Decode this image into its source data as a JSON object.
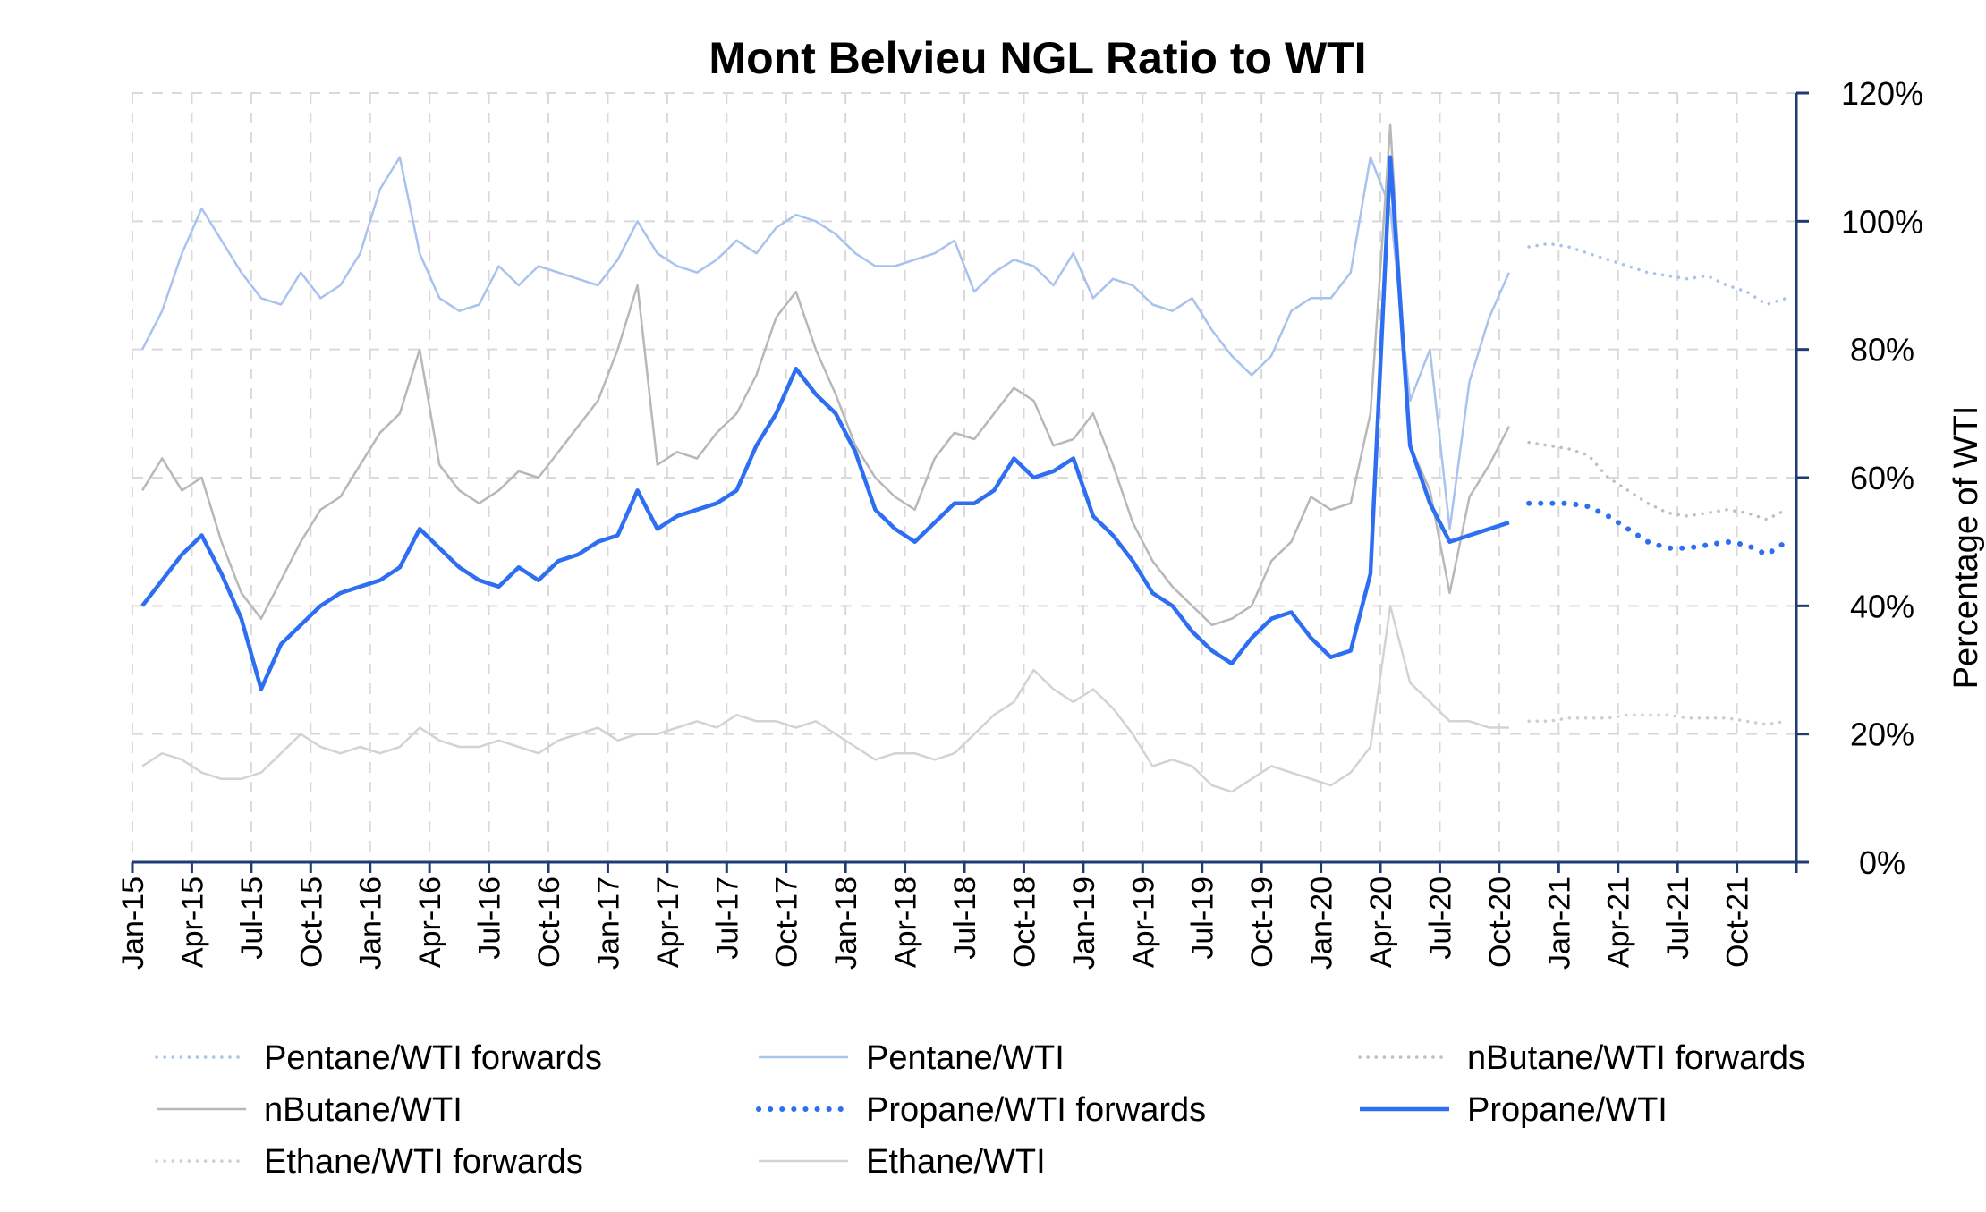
{
  "chart_data": {
    "type": "line",
    "title": "Mont Belvieu NGL Ratio to WTI",
    "xlabel": "",
    "ylabel": "Percentage of WTI",
    "y_unit": "%",
    "ylim": [
      0,
      120
    ],
    "y_ticks": [
      "0%",
      "20%",
      "40%",
      "60%",
      "80%",
      "100%",
      "120%"
    ],
    "x_range": [
      "2015-01",
      "2021-12"
    ],
    "x_ticks": [
      "Jan-15",
      "Apr-15",
      "Jul-15",
      "Oct-15",
      "Jan-16",
      "Apr-16",
      "Jul-16",
      "Oct-16",
      "Jan-17",
      "Apr-17",
      "Jul-17",
      "Oct-17",
      "Jan-18",
      "Apr-18",
      "Jul-18",
      "Oct-18",
      "Jan-19",
      "Apr-19",
      "Jul-19",
      "Oct-19",
      "Jan-20",
      "Apr-20",
      "Jul-20",
      "Oct-20",
      "Jan-21",
      "Apr-21",
      "Jul-21",
      "Oct-21"
    ],
    "grid": true,
    "legend_position": "bottom",
    "y_axis_side": "right",
    "series": [
      {
        "name": "Pentane/WTI forwards",
        "color": "#a9c2ee",
        "style": "dotted",
        "x": [
          "2020-11",
          "2020-12",
          "2021-01",
          "2021-02",
          "2021-03",
          "2021-04",
          "2021-05",
          "2021-06",
          "2021-07",
          "2021-08",
          "2021-09",
          "2021-10",
          "2021-11",
          "2021-12"
        ],
        "values": [
          96,
          96.5,
          96,
          95,
          94,
          93,
          92,
          91.5,
          91,
          91.5,
          90,
          89,
          87,
          88
        ]
      },
      {
        "name": "Pentane/WTI",
        "color": "#a9c2ee",
        "style": "solid",
        "x": [
          "2015-01",
          "2015-02",
          "2015-03",
          "2015-04",
          "2015-05",
          "2015-06",
          "2015-07",
          "2015-08",
          "2015-09",
          "2015-10",
          "2015-11",
          "2015-12",
          "2016-01",
          "2016-02",
          "2016-03",
          "2016-04",
          "2016-05",
          "2016-06",
          "2016-07",
          "2016-08",
          "2016-09",
          "2016-10",
          "2016-11",
          "2016-12",
          "2017-01",
          "2017-02",
          "2017-03",
          "2017-04",
          "2017-05",
          "2017-06",
          "2017-07",
          "2017-08",
          "2017-09",
          "2017-10",
          "2017-11",
          "2017-12",
          "2018-01",
          "2018-02",
          "2018-03",
          "2018-04",
          "2018-05",
          "2018-06",
          "2018-07",
          "2018-08",
          "2018-09",
          "2018-10",
          "2018-11",
          "2018-12",
          "2019-01",
          "2019-02",
          "2019-03",
          "2019-04",
          "2019-05",
          "2019-06",
          "2019-07",
          "2019-08",
          "2019-09",
          "2019-10",
          "2019-11",
          "2019-12",
          "2020-01",
          "2020-02",
          "2020-03",
          "2020-04",
          "2020-05",
          "2020-06",
          "2020-07",
          "2020-08",
          "2020-09",
          "2020-10"
        ],
        "values": [
          80,
          86,
          95,
          102,
          97,
          92,
          88,
          87,
          92,
          88,
          90,
          95,
          105,
          110,
          95,
          88,
          86,
          87,
          93,
          90,
          93,
          92,
          91,
          90,
          94,
          100,
          95,
          93,
          92,
          94,
          97,
          95,
          99,
          101,
          100,
          98,
          95,
          93,
          93,
          94,
          95,
          97,
          89,
          92,
          94,
          93,
          90,
          95,
          88,
          91,
          90,
          87,
          86,
          88,
          83,
          79,
          76,
          79,
          86,
          88,
          88,
          92,
          110,
          102,
          72,
          80,
          52,
          75,
          85,
          92
        ]
      },
      {
        "name": "nButane/WTI forwards",
        "color": "#bfbfbf",
        "style": "dotted",
        "x": [
          "2020-11",
          "2020-12",
          "2021-01",
          "2021-02",
          "2021-03",
          "2021-04",
          "2021-05",
          "2021-06",
          "2021-07",
          "2021-08",
          "2021-09",
          "2021-10",
          "2021-11",
          "2021-12"
        ],
        "values": [
          65.5,
          65,
          64.5,
          63.5,
          60,
          58,
          56,
          54.5,
          54,
          54.5,
          55,
          54.5,
          53.5,
          55
        ]
      },
      {
        "name": "nButane/WTI",
        "color": "#b8b8b8",
        "style": "solid",
        "x": [
          "2015-01",
          "2015-02",
          "2015-03",
          "2015-04",
          "2015-05",
          "2015-06",
          "2015-07",
          "2015-08",
          "2015-09",
          "2015-10",
          "2015-11",
          "2015-12",
          "2016-01",
          "2016-02",
          "2016-03",
          "2016-04",
          "2016-05",
          "2016-06",
          "2016-07",
          "2016-08",
          "2016-09",
          "2016-10",
          "2016-11",
          "2016-12",
          "2017-01",
          "2017-02",
          "2017-03",
          "2017-04",
          "2017-05",
          "2017-06",
          "2017-07",
          "2017-08",
          "2017-09",
          "2017-10",
          "2017-11",
          "2017-12",
          "2018-01",
          "2018-02",
          "2018-03",
          "2018-04",
          "2018-05",
          "2018-06",
          "2018-07",
          "2018-08",
          "2018-09",
          "2018-10",
          "2018-11",
          "2018-12",
          "2019-01",
          "2019-02",
          "2019-03",
          "2019-04",
          "2019-05",
          "2019-06",
          "2019-07",
          "2019-08",
          "2019-09",
          "2019-10",
          "2019-11",
          "2019-12",
          "2020-01",
          "2020-02",
          "2020-03",
          "2020-04",
          "2020-05",
          "2020-06",
          "2020-07",
          "2020-08",
          "2020-09",
          "2020-10"
        ],
        "values": [
          58,
          63,
          58,
          60,
          50,
          42,
          38,
          44,
          50,
          55,
          57,
          62,
          67,
          70,
          80,
          62,
          58,
          56,
          58,
          61,
          60,
          64,
          68,
          72,
          80,
          90,
          62,
          64,
          63,
          67,
          70,
          76,
          85,
          89,
          80,
          73,
          65,
          60,
          57,
          55,
          63,
          67,
          66,
          70,
          74,
          72,
          65,
          66,
          70,
          62,
          53,
          47,
          43,
          40,
          37,
          38,
          40,
          47,
          50,
          57,
          55,
          56,
          70,
          115,
          65,
          58,
          42,
          57,
          62,
          68
        ]
      },
      {
        "name": "Propane/WTI forwards",
        "color": "#2e6ff2",
        "style": "dotted",
        "x": [
          "2020-11",
          "2020-12",
          "2021-01",
          "2021-02",
          "2021-03",
          "2021-04",
          "2021-05",
          "2021-06",
          "2021-07",
          "2021-08",
          "2021-09",
          "2021-10",
          "2021-11",
          "2021-12"
        ],
        "values": [
          56,
          56,
          56,
          55.5,
          54,
          52,
          50,
          49,
          49,
          49.5,
          50,
          49.5,
          48,
          50
        ]
      },
      {
        "name": "Propane/WTI",
        "color": "#2e6ff2",
        "style": "solid",
        "x": [
          "2015-01",
          "2015-02",
          "2015-03",
          "2015-04",
          "2015-05",
          "2015-06",
          "2015-07",
          "2015-08",
          "2015-09",
          "2015-10",
          "2015-11",
          "2015-12",
          "2016-01",
          "2016-02",
          "2016-03",
          "2016-04",
          "2016-05",
          "2016-06",
          "2016-07",
          "2016-08",
          "2016-09",
          "2016-10",
          "2016-11",
          "2016-12",
          "2017-01",
          "2017-02",
          "2017-03",
          "2017-04",
          "2017-05",
          "2017-06",
          "2017-07",
          "2017-08",
          "2017-09",
          "2017-10",
          "2017-11",
          "2017-12",
          "2018-01",
          "2018-02",
          "2018-03",
          "2018-04",
          "2018-05",
          "2018-06",
          "2018-07",
          "2018-08",
          "2018-09",
          "2018-10",
          "2018-11",
          "2018-12",
          "2019-01",
          "2019-02",
          "2019-03",
          "2019-04",
          "2019-05",
          "2019-06",
          "2019-07",
          "2019-08",
          "2019-09",
          "2019-10",
          "2019-11",
          "2019-12",
          "2020-01",
          "2020-02",
          "2020-03",
          "2020-04",
          "2020-05",
          "2020-06",
          "2020-07",
          "2020-08",
          "2020-09",
          "2020-10"
        ],
        "values": [
          40,
          44,
          48,
          51,
          45,
          38,
          27,
          34,
          37,
          40,
          42,
          43,
          44,
          46,
          52,
          49,
          46,
          44,
          43,
          46,
          44,
          47,
          48,
          50,
          51,
          58,
          52,
          54,
          55,
          56,
          58,
          65,
          70,
          77,
          73,
          70,
          64,
          55,
          52,
          50,
          53,
          56,
          56,
          58,
          63,
          60,
          61,
          63,
          54,
          51,
          47,
          42,
          40,
          36,
          33,
          31,
          35,
          38,
          39,
          35,
          32,
          33,
          45,
          110,
          65,
          56,
          50,
          51,
          52,
          53
        ]
      },
      {
        "name": "Ethane/WTI forwards",
        "color": "#cfcfcf",
        "style": "dotted",
        "x": [
          "2020-11",
          "2020-12",
          "2021-01",
          "2021-02",
          "2021-03",
          "2021-04",
          "2021-05",
          "2021-06",
          "2021-07",
          "2021-08",
          "2021-09",
          "2021-10",
          "2021-11",
          "2021-12"
        ],
        "values": [
          22,
          22,
          22.5,
          22.5,
          22.5,
          23,
          23,
          23,
          22.5,
          22.5,
          22.5,
          22,
          21.5,
          22
        ]
      },
      {
        "name": "Ethane/WTI",
        "color": "#d3d3d3",
        "style": "solid",
        "x": [
          "2015-01",
          "2015-02",
          "2015-03",
          "2015-04",
          "2015-05",
          "2015-06",
          "2015-07",
          "2015-08",
          "2015-09",
          "2015-10",
          "2015-11",
          "2015-12",
          "2016-01",
          "2016-02",
          "2016-03",
          "2016-04",
          "2016-05",
          "2016-06",
          "2016-07",
          "2016-08",
          "2016-09",
          "2016-10",
          "2016-11",
          "2016-12",
          "2017-01",
          "2017-02",
          "2017-03",
          "2017-04",
          "2017-05",
          "2017-06",
          "2017-07",
          "2017-08",
          "2017-09",
          "2017-10",
          "2017-11",
          "2017-12",
          "2018-01",
          "2018-02",
          "2018-03",
          "2018-04",
          "2018-05",
          "2018-06",
          "2018-07",
          "2018-08",
          "2018-09",
          "2018-10",
          "2018-11",
          "2018-12",
          "2019-01",
          "2019-02",
          "2019-03",
          "2019-04",
          "2019-05",
          "2019-06",
          "2019-07",
          "2019-08",
          "2019-09",
          "2019-10",
          "2019-11",
          "2019-12",
          "2020-01",
          "2020-02",
          "2020-03",
          "2020-04",
          "2020-05",
          "2020-06",
          "2020-07",
          "2020-08",
          "2020-09",
          "2020-10"
        ],
        "values": [
          15,
          17,
          16,
          14,
          13,
          13,
          14,
          17,
          20,
          18,
          17,
          18,
          17,
          18,
          21,
          19,
          18,
          18,
          19,
          18,
          17,
          19,
          20,
          21,
          19,
          20,
          20,
          21,
          22,
          21,
          23,
          22,
          22,
          21,
          22,
          20,
          18,
          16,
          17,
          17,
          16,
          17,
          20,
          23,
          25,
          30,
          27,
          25,
          27,
          24,
          20,
          15,
          16,
          15,
          12,
          11,
          13,
          15,
          14,
          13,
          12,
          14,
          18,
          40,
          28,
          25,
          22,
          22,
          21,
          21
        ]
      }
    ]
  }
}
